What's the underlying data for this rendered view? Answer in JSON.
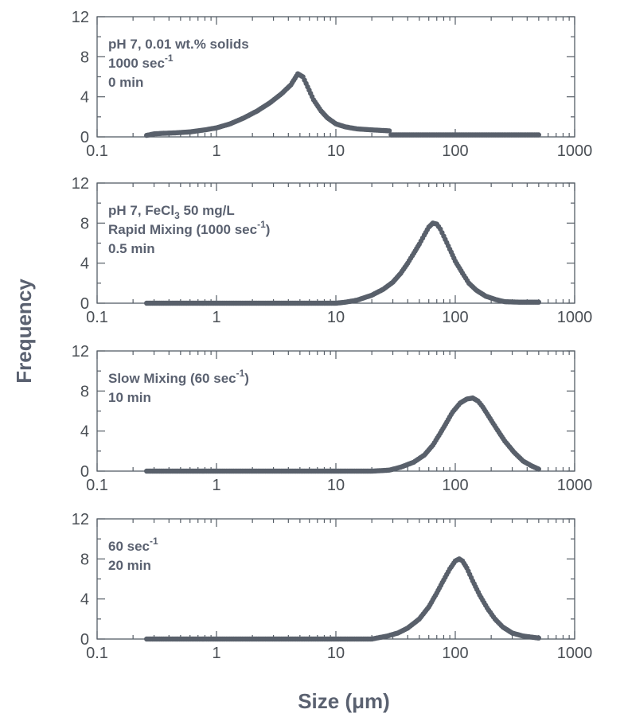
{
  "figure": {
    "ylabel": "Frequency",
    "xlabel": "Size (μm)"
  },
  "colors": {
    "marker": "#59606b",
    "axis": "#555d66",
    "text": "#5a6170"
  },
  "chart_data": [
    {
      "type": "scatter",
      "xscale": "log",
      "xlim": [
        0.1,
        1000
      ],
      "ylim": [
        0,
        12
      ],
      "xticks": [
        "0.1",
        "1",
        "10",
        "100",
        "1000"
      ],
      "yticks": [
        "0",
        "4",
        "8",
        "12"
      ],
      "annotation": [
        {
          "text": "pH 7, 0.01 wt.% solids"
        },
        {
          "text": "1000 sec",
          "sup": "-1"
        },
        {
          "text": "0 min"
        }
      ],
      "series": [
        {
          "points": [
            [
              0.26,
              0.15
            ],
            [
              0.3,
              0.3
            ],
            [
              0.35,
              0.35
            ],
            [
              0.45,
              0.4
            ],
            [
              0.6,
              0.5
            ],
            [
              0.8,
              0.7
            ],
            [
              1.0,
              0.9
            ],
            [
              1.3,
              1.3
            ],
            [
              1.7,
              1.9
            ],
            [
              2.2,
              2.6
            ],
            [
              2.8,
              3.4
            ],
            [
              3.5,
              4.3
            ],
            [
              4.2,
              5.2
            ],
            [
              4.8,
              6.3
            ],
            [
              5.3,
              6.0
            ],
            [
              5.8,
              5.0
            ],
            [
              6.5,
              3.7
            ],
            [
              7.5,
              2.6
            ],
            [
              8.5,
              1.9
            ],
            [
              10,
              1.3
            ],
            [
              12,
              1.0
            ],
            [
              15,
              0.8
            ],
            [
              20,
              0.7
            ],
            [
              28,
              0.6
            ],
            [
              29,
              0.2
            ],
            [
              50,
              0.2
            ],
            [
              100,
              0.2
            ],
            [
              200,
              0.2
            ],
            [
              500,
              0.2
            ]
          ]
        }
      ]
    },
    {
      "type": "scatter",
      "xscale": "log",
      "xlim": [
        0.1,
        1000
      ],
      "ylim": [
        0,
        12
      ],
      "xticks": [
        "0.1",
        "1",
        "10",
        "100",
        "1000"
      ],
      "yticks": [
        "0",
        "4",
        "8",
        "12"
      ],
      "annotation": [
        {
          "text": "pH 7, FeCl",
          "sub": "3",
          "after": " 50 mg/L"
        },
        {
          "text": "Rapid Mixing (1000 sec",
          "sup": "-1",
          "after": ")"
        },
        {
          "text": "0.5 min"
        }
      ],
      "series": [
        {
          "points": [
            [
              0.26,
              0.0
            ],
            [
              1,
              0.0
            ],
            [
              5,
              0.0
            ],
            [
              10,
              0.0
            ],
            [
              12,
              0.1
            ],
            [
              15,
              0.3
            ],
            [
              20,
              0.8
            ],
            [
              25,
              1.4
            ],
            [
              30,
              2.1
            ],
            [
              35,
              3.0
            ],
            [
              40,
              4.0
            ],
            [
              45,
              5.0
            ],
            [
              50,
              5.9
            ],
            [
              55,
              6.8
            ],
            [
              60,
              7.6
            ],
            [
              65,
              8.0
            ],
            [
              70,
              7.9
            ],
            [
              75,
              7.4
            ],
            [
              80,
              6.7
            ],
            [
              90,
              5.4
            ],
            [
              100,
              4.2
            ],
            [
              115,
              3.0
            ],
            [
              130,
              2.0
            ],
            [
              150,
              1.3
            ],
            [
              180,
              0.7
            ],
            [
              220,
              0.35
            ],
            [
              260,
              0.15
            ],
            [
              350,
              0.1
            ],
            [
              500,
              0.1
            ]
          ]
        }
      ]
    },
    {
      "type": "scatter",
      "xscale": "log",
      "xlim": [
        0.1,
        1000
      ],
      "ylim": [
        0,
        12
      ],
      "xticks": [
        "0.1",
        "1",
        "10",
        "100",
        "1000"
      ],
      "yticks": [
        "0",
        "4",
        "8",
        "12"
      ],
      "annotation": [
        {
          "text": "Slow Mixing (60 sec",
          "sup": "-1",
          "after": ")"
        },
        {
          "text": "10 min"
        }
      ],
      "series": [
        {
          "points": [
            [
              0.26,
              0.0
            ],
            [
              1,
              0.0
            ],
            [
              5,
              0.0
            ],
            [
              10,
              0.0
            ],
            [
              20,
              0.0
            ],
            [
              28,
              0.1
            ],
            [
              35,
              0.4
            ],
            [
              45,
              0.9
            ],
            [
              55,
              1.6
            ],
            [
              65,
              2.6
            ],
            [
              75,
              3.8
            ],
            [
              85,
              4.9
            ],
            [
              95,
              5.9
            ],
            [
              110,
              6.8
            ],
            [
              125,
              7.2
            ],
            [
              140,
              7.3
            ],
            [
              155,
              7.0
            ],
            [
              170,
              6.4
            ],
            [
              190,
              5.5
            ],
            [
              220,
              4.3
            ],
            [
              260,
              3.0
            ],
            [
              310,
              1.9
            ],
            [
              370,
              1.0
            ],
            [
              440,
              0.5
            ],
            [
              500,
              0.2
            ]
          ]
        }
      ]
    },
    {
      "type": "scatter",
      "xscale": "log",
      "xlim": [
        0.1,
        1000
      ],
      "ylim": [
        0,
        12
      ],
      "xticks": [
        "0.1",
        "1",
        "10",
        "100",
        "1000"
      ],
      "yticks": [
        "0",
        "4",
        "8",
        "12"
      ],
      "annotation": [
        {
          "text": "60 sec",
          "sup": "-1"
        },
        {
          "text": "20 min"
        }
      ],
      "series": [
        {
          "points": [
            [
              0.26,
              0.0
            ],
            [
              1,
              0.0
            ],
            [
              5,
              0.0
            ],
            [
              10,
              0.0
            ],
            [
              20,
              0.0
            ],
            [
              22,
              0.1
            ],
            [
              27,
              0.3
            ],
            [
              33,
              0.6
            ],
            [
              40,
              1.1
            ],
            [
              50,
              2.0
            ],
            [
              60,
              3.2
            ],
            [
              70,
              4.6
            ],
            [
              80,
              5.9
            ],
            [
              90,
              7.0
            ],
            [
              100,
              7.8
            ],
            [
              108,
              8.0
            ],
            [
              115,
              7.8
            ],
            [
              125,
              7.1
            ],
            [
              140,
              5.8
            ],
            [
              160,
              4.4
            ],
            [
              185,
              3.1
            ],
            [
              215,
              2.0
            ],
            [
              250,
              1.2
            ],
            [
              300,
              0.6
            ],
            [
              370,
              0.3
            ],
            [
              500,
              0.1
            ]
          ]
        }
      ]
    }
  ]
}
